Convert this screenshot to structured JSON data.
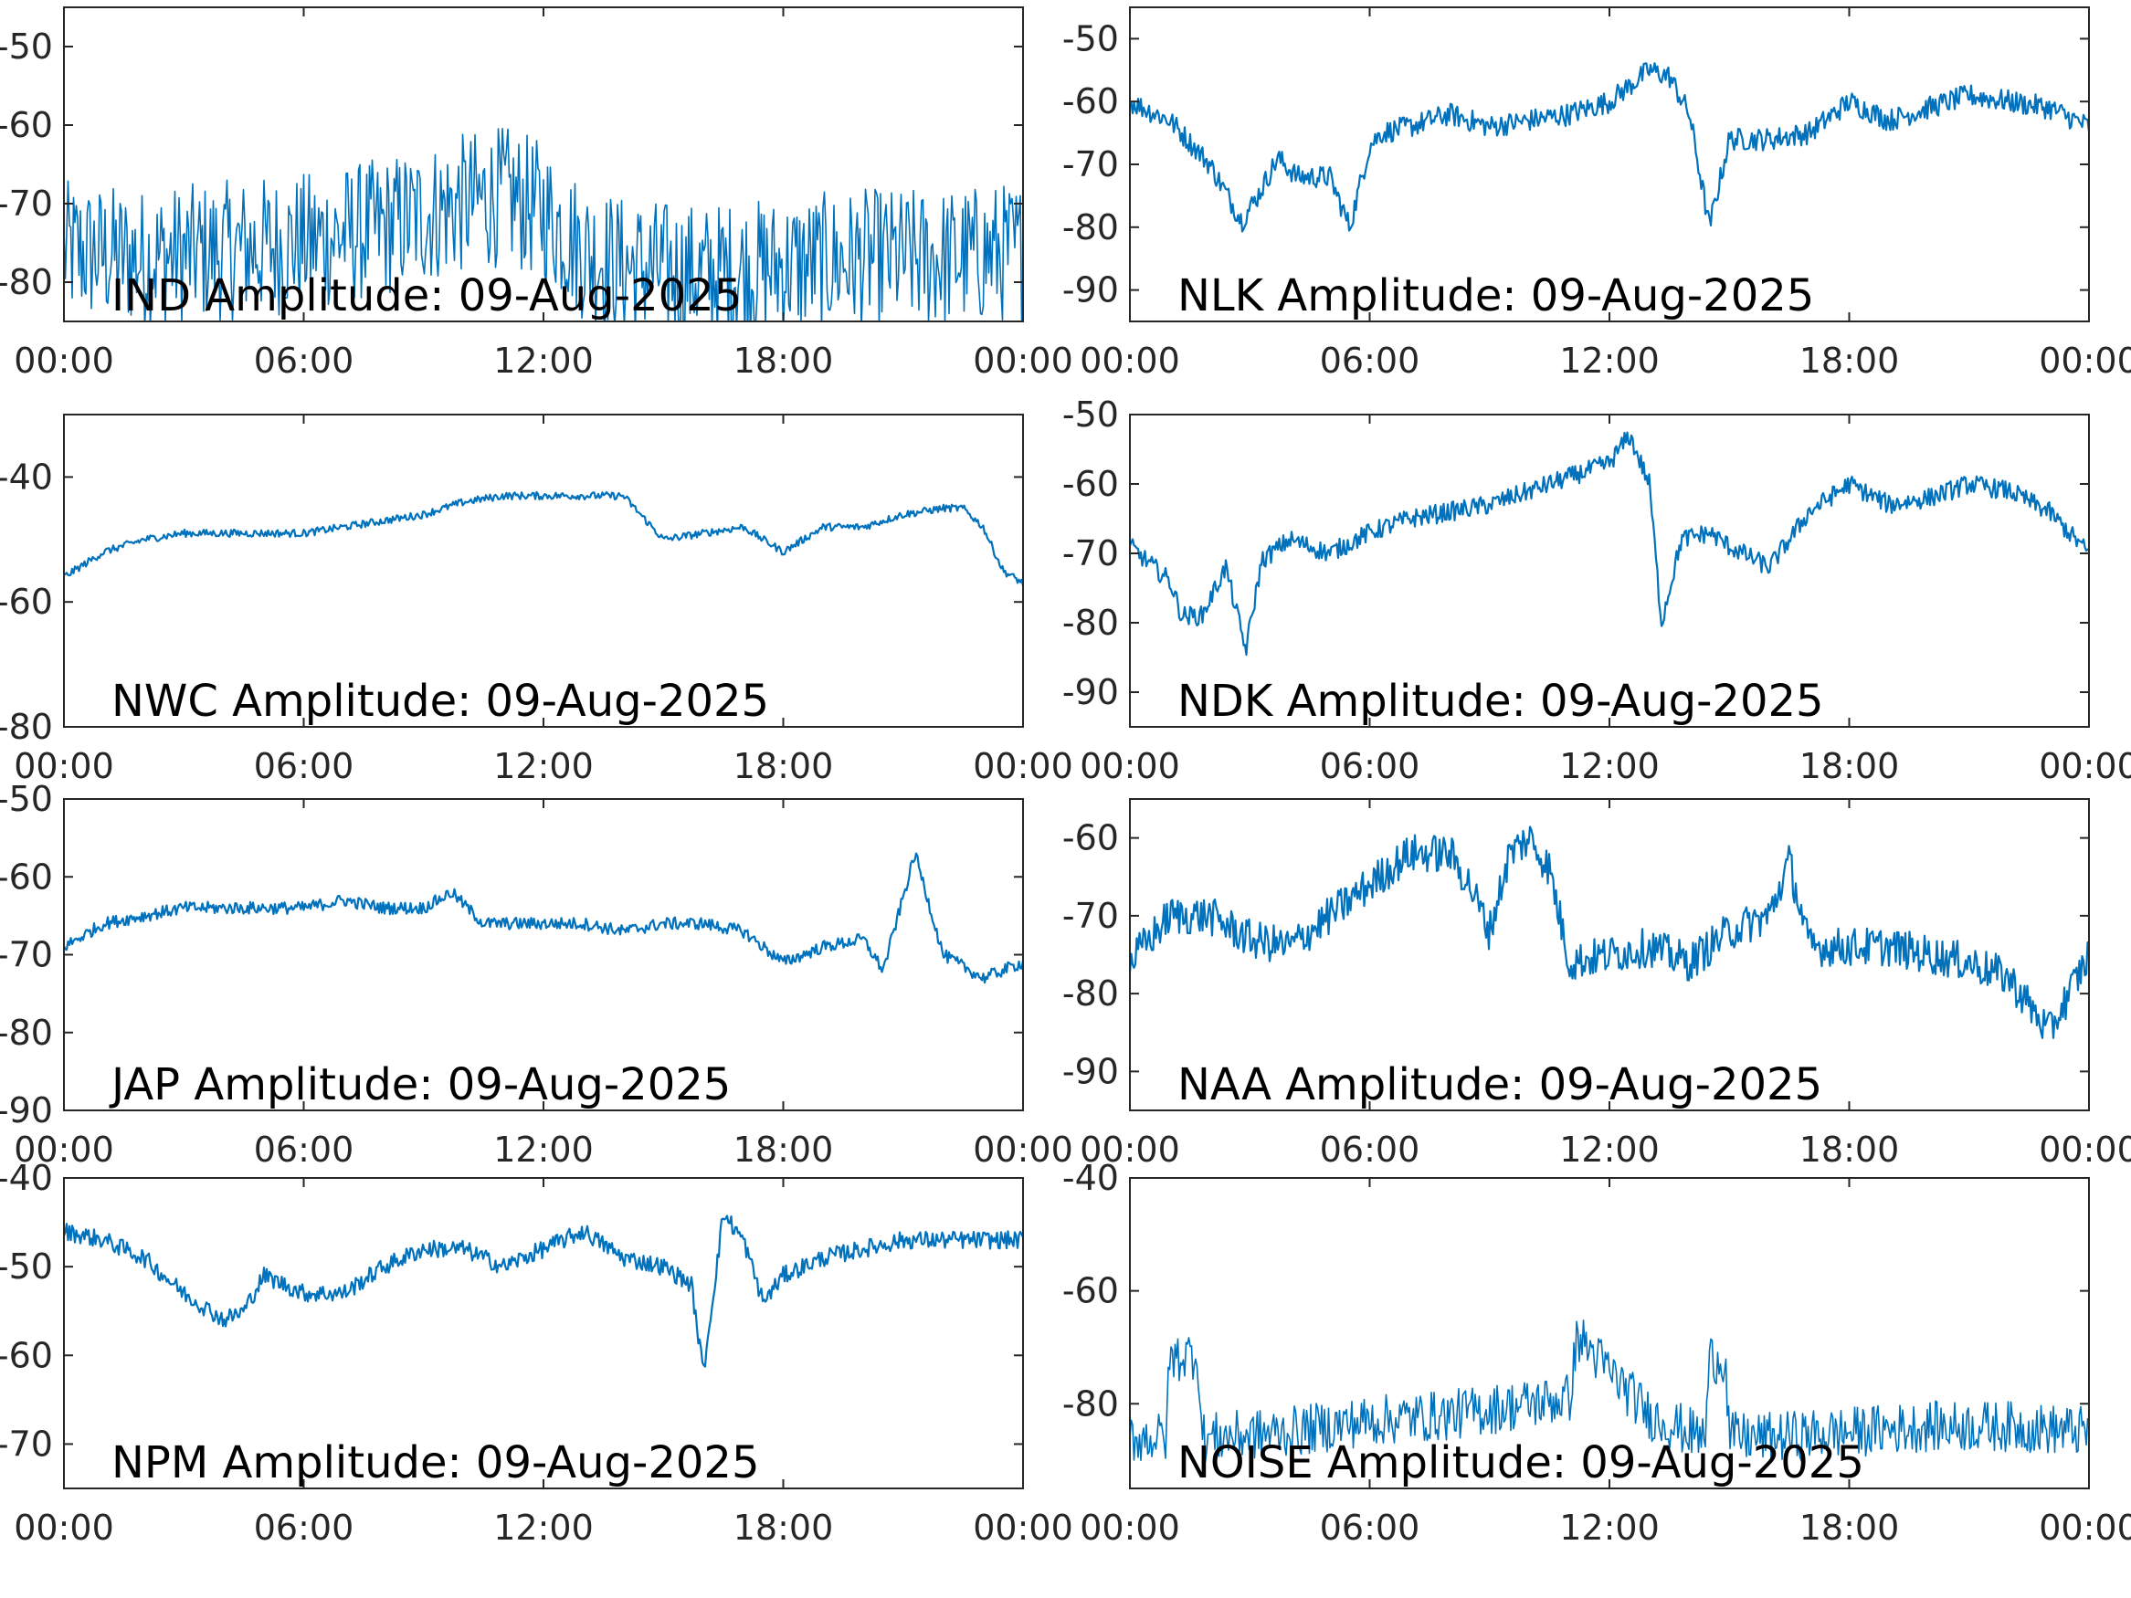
{
  "colors": {
    "series": "#0072BD",
    "axis": "#262626",
    "background": "#ffffff"
  },
  "chart_data": [
    {
      "type": "line",
      "title": "IND Amplitude: 09-Aug-2025",
      "x_ticks": [
        "00:00",
        "06:00",
        "12:00",
        "18:00",
        "00:00"
      ],
      "y_ticks": [
        "-50",
        "-60",
        "-70",
        "-80"
      ],
      "y_tick_values": [
        -50,
        -60,
        -70,
        -80
      ],
      "ylim": [
        -85,
        -45
      ],
      "grid": false,
      "noise": 9,
      "series": [
        {
          "x_hours": [
            0,
            2,
            4,
            6,
            8,
            10,
            11,
            12,
            13,
            14,
            16,
            18,
            20,
            22,
            24
          ],
          "values": [
            -76,
            -77,
            -76,
            -75,
            -73,
            -70,
            -69,
            -71,
            -76,
            -78,
            -79,
            -78,
            -77,
            -77,
            -76
          ]
        }
      ]
    },
    {
      "type": "line",
      "title": "NLK Amplitude: 09-Aug-2025",
      "x_ticks": [
        "00:00",
        "06:00",
        "12:00",
        "18:00",
        "00:00"
      ],
      "y_ticks": [
        "-50",
        "-60",
        "-70",
        "-80",
        "-90"
      ],
      "y_tick_values": [
        -50,
        -60,
        -70,
        -80,
        -90
      ],
      "ylim": [
        -95,
        -45
      ],
      "grid": false,
      "noise": 1.8,
      "series": [
        {
          "x_hours": [
            0,
            1,
            2,
            2.8,
            3.2,
            3.7,
            4.2,
            5,
            5.5,
            6,
            6.3,
            7,
            8,
            9,
            10,
            11,
            12,
            13,
            13.5,
            14,
            14.5,
            15,
            16,
            17,
            18,
            19,
            20,
            21,
            22,
            23,
            24
          ],
          "values": [
            -60,
            -63,
            -70,
            -79,
            -75,
            -69,
            -72,
            -72,
            -80,
            -67,
            -65,
            -64,
            -62,
            -64,
            -63,
            -62,
            -60,
            -55,
            -56,
            -62,
            -80,
            -66,
            -66,
            -65,
            -60,
            -63,
            -61,
            -59,
            -60,
            -61,
            -64
          ]
        }
      ]
    },
    {
      "type": "line",
      "title": "NWC Amplitude: 09-Aug-2025",
      "x_ticks": [
        "00:00",
        "06:00",
        "12:00",
        "18:00",
        "00:00"
      ],
      "y_ticks": [
        "-40",
        "-60",
        "-80"
      ],
      "y_tick_values": [
        -40,
        -60,
        -80
      ],
      "ylim": [
        -80,
        -30
      ],
      "grid": false,
      "noise": 0.6,
      "series": [
        {
          "x_hours": [
            0,
            1,
            2,
            3,
            4,
            5,
            6,
            7,
            8,
            9,
            10,
            11,
            12,
            13,
            14,
            15,
            16,
            17,
            18,
            19,
            20,
            21,
            22,
            22.5,
            23,
            23.5,
            24
          ],
          "values": [
            -56,
            -52,
            -50,
            -49,
            -49,
            -49,
            -49,
            -48,
            -47,
            -46,
            -44,
            -43,
            -43,
            -43,
            -43,
            -50,
            -49,
            -48,
            -52,
            -48,
            -48,
            -46,
            -45,
            -45,
            -48,
            -55,
            -57
          ]
        }
      ]
    },
    {
      "type": "line",
      "title": "NDK Amplitude: 09-Aug-2025",
      "x_ticks": [
        "00:00",
        "06:00",
        "12:00",
        "18:00",
        "00:00"
      ],
      "y_ticks": [
        "-50",
        "-60",
        "-70",
        "-80",
        "-90"
      ],
      "y_tick_values": [
        -50,
        -60,
        -70,
        -80,
        -90
      ],
      "ylim": [
        -95,
        -50
      ],
      "grid": false,
      "noise": 1.4,
      "series": [
        {
          "x_hours": [
            0,
            1,
            1.3,
            1.8,
            2.4,
            2.9,
            3.3,
            4,
            5,
            6,
            7,
            8,
            9,
            10,
            11,
            12,
            12.5,
            13,
            13.3,
            13.8,
            14.5,
            15,
            16,
            17,
            18,
            19,
            20,
            21,
            22,
            23,
            24
          ],
          "values": [
            -69,
            -74,
            -79,
            -79,
            -72,
            -84,
            -71,
            -68,
            -70,
            -67,
            -65,
            -64,
            -63,
            -61,
            -59,
            -57,
            -53,
            -60,
            -80,
            -68,
            -67,
            -69,
            -72,
            -64,
            -60,
            -63,
            -62,
            -60,
            -61,
            -64,
            -70
          ]
        }
      ]
    },
    {
      "type": "line",
      "title": "JAP Amplitude: 09-Aug-2025",
      "x_ticks": [
        "00:00",
        "06:00",
        "12:00",
        "18:00",
        "00:00"
      ],
      "y_ticks": [
        "-50",
        "-60",
        "-70",
        "-80",
        "-90"
      ],
      "y_tick_values": [
        -50,
        -60,
        -70,
        -80,
        -90
      ],
      "ylim": [
        -90,
        -50
      ],
      "grid": false,
      "noise": 0.8,
      "series": [
        {
          "x_hours": [
            0,
            1,
            2,
            3,
            4,
            5,
            6,
            7,
            8,
            9,
            9.7,
            10.5,
            12,
            13,
            14,
            15,
            16,
            17,
            18,
            19,
            20,
            20.5,
            21.3,
            22,
            23,
            24
          ],
          "values": [
            -69,
            -66,
            -65,
            -64,
            -64,
            -64,
            -64,
            -63,
            -64,
            -64,
            -62,
            -66,
            -66,
            -66,
            -67,
            -66,
            -66,
            -67,
            -71,
            -69,
            -68,
            -72,
            -57,
            -70,
            -73,
            -71
          ]
        }
      ]
    },
    {
      "type": "line",
      "title": "NAA Amplitude: 09-Aug-2025",
      "x_ticks": [
        "00:00",
        "06:00",
        "12:00",
        "18:00",
        "00:00"
      ],
      "y_ticks": [
        "-60",
        "-70",
        "-80",
        "-90"
      ],
      "y_tick_values": [
        -60,
        -70,
        -80,
        -90
      ],
      "ylim": [
        -95,
        -55
      ],
      "grid": false,
      "noise": 2.5,
      "series": [
        {
          "x_hours": [
            0,
            1,
            2,
            3,
            4,
            5,
            6,
            7,
            8,
            8.5,
            9,
            9.5,
            10,
            10.5,
            11,
            12,
            13,
            14,
            15,
            16,
            16.5,
            17,
            18,
            19,
            20,
            21,
            22,
            23,
            24
          ],
          "values": [
            -76,
            -70,
            -70,
            -73,
            -74,
            -70,
            -66,
            -62,
            -62,
            -66,
            -72,
            -62,
            -60,
            -64,
            -76,
            -75,
            -74,
            -76,
            -72,
            -70,
            -63,
            -74,
            -74,
            -74,
            -75,
            -76,
            -78,
            -85,
            -75
          ]
        }
      ]
    },
    {
      "type": "line",
      "title": "NPM Amplitude: 09-Aug-2025",
      "x_ticks": [
        "00:00",
        "06:00",
        "12:00",
        "18:00",
        "00:00"
      ],
      "y_ticks": [
        "-40",
        "-50",
        "-60",
        "-70"
      ],
      "y_tick_values": [
        -40,
        -50,
        -60,
        -70
      ],
      "ylim": [
        -75,
        -40
      ],
      "grid": false,
      "noise": 1.0,
      "series": [
        {
          "x_hours": [
            0,
            1,
            2,
            3,
            4,
            4.5,
            5,
            6,
            7,
            8,
            9,
            10,
            11,
            12,
            13,
            14,
            15,
            15.7,
            16,
            16.5,
            17,
            17.5,
            18,
            19,
            20,
            21,
            22,
            23,
            24
          ],
          "values": [
            -46,
            -47,
            -49,
            -53,
            -56,
            -55,
            -51,
            -53,
            -53,
            -50,
            -48,
            -48,
            -50,
            -48,
            -46,
            -49,
            -50,
            -52,
            -62,
            -44,
            -47,
            -54,
            -51,
            -49,
            -48,
            -47,
            -47,
            -47,
            -47
          ]
        }
      ]
    },
    {
      "type": "line",
      "title": "NOISE Amplitude: 09-Aug-2025",
      "x_ticks": [
        "00:00",
        "06:00",
        "12:00",
        "18:00",
        "00:00"
      ],
      "y_ticks": [
        "-40",
        "-60",
        "-80"
      ],
      "y_tick_values": [
        -40,
        -60,
        -80
      ],
      "ylim": [
        -95,
        -40
      ],
      "grid": false,
      "noise": 4.5,
      "series": [
        {
          "x_hours": [
            0,
            0.9,
            1.0,
            1.7,
            1.8,
            2,
            4,
            6,
            8,
            10,
            11,
            11.2,
            13,
            14,
            14.4,
            14.5,
            14.9,
            15,
            16,
            18,
            20,
            22,
            24
          ],
          "values": [
            -86,
            -86,
            -72,
            -71,
            -86,
            -86,
            -85,
            -83,
            -82,
            -80,
            -79,
            -68,
            -82,
            -85,
            -86,
            -72,
            -72,
            -86,
            -86,
            -85,
            -84,
            -84,
            -85
          ]
        }
      ]
    }
  ]
}
